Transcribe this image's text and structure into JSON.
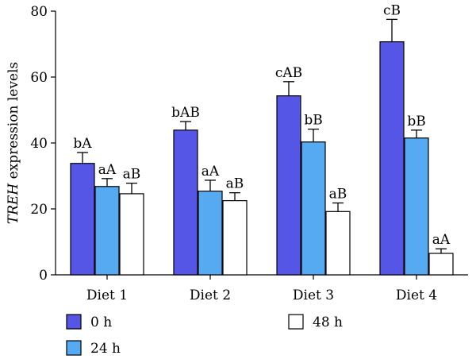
{
  "chart_data": {
    "type": "bar",
    "title": "",
    "xlabel": "",
    "ylabel_italic": "TREH",
    "ylabel_rest": " expression levels",
    "ylim": [
      0,
      80
    ],
    "yticks": [
      0,
      20,
      40,
      60,
      80
    ],
    "categories": [
      "Diet 1",
      "Diet 2",
      "Diet 3",
      "Diet 4"
    ],
    "series": [
      {
        "name": "0 h",
        "color": "#5555e6",
        "values": [
          33.8,
          43.9,
          54.3,
          70.7
        ],
        "errors": [
          3.3,
          2.6,
          4.3,
          6.8
        ],
        "labels": [
          "bA",
          "bAB",
          "cAB",
          "cB"
        ]
      },
      {
        "name": "24 h",
        "color": "#55aaf2",
        "values": [
          26.8,
          25.4,
          40.3,
          41.5
        ],
        "errors": [
          2.4,
          3.3,
          3.9,
          2.4
        ],
        "labels": [
          "aA",
          "aA",
          "bB",
          "bB"
        ]
      },
      {
        "name": "48 h",
        "color": "#ffffff",
        "values": [
          24.6,
          22.5,
          19.2,
          6.5
        ],
        "errors": [
          3.2,
          2.4,
          2.6,
          1.4
        ],
        "labels": [
          "aB",
          "aB",
          "aB",
          "aA"
        ]
      }
    ],
    "legend_position": "bottom"
  }
}
